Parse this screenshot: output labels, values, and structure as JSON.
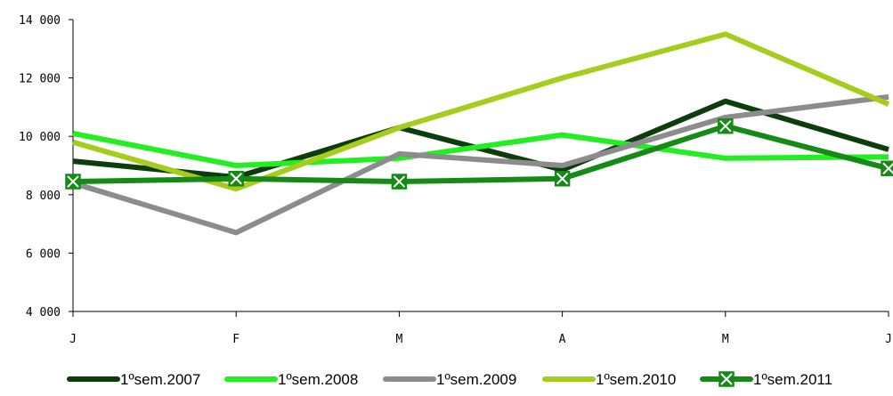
{
  "chart_data": {
    "type": "line",
    "title": "",
    "xlabel": "",
    "ylabel": "",
    "categories": [
      "J",
      "F",
      "M",
      "A",
      "M",
      "J"
    ],
    "ylim": [
      4000,
      14000
    ],
    "yticks": [
      4000,
      6000,
      8000,
      10000,
      12000,
      14000
    ],
    "ytick_labels": [
      "4 000",
      "6 000",
      "8 000",
      "10 000",
      "12 000",
      "14 000"
    ],
    "grid": false,
    "legend_position": "bottom",
    "series": [
      {
        "name": "1ºsem.2007",
        "color": "#0d3d0d",
        "marker": "none",
        "values": [
          9150,
          8600,
          10300,
          8850,
          11200,
          9550
        ]
      },
      {
        "name": "1ºsem.2008",
        "color": "#22ee22",
        "marker": "none",
        "values": [
          10100,
          9000,
          9250,
          10050,
          9250,
          9300
        ]
      },
      {
        "name": "1ºsem.2009",
        "color": "#8c8c8c",
        "marker": "none",
        "values": [
          8400,
          6700,
          9400,
          9000,
          10650,
          11350
        ]
      },
      {
        "name": "1ºsem.2010",
        "color": "#a6cc1e",
        "marker": "none",
        "values": [
          9800,
          8200,
          10300,
          12000,
          13500,
          11100
        ]
      },
      {
        "name": "1ºsem.2011",
        "color": "#158a15",
        "marker": "box-x",
        "values": [
          8450,
          8550,
          8450,
          8550,
          10350,
          8900
        ]
      }
    ]
  }
}
